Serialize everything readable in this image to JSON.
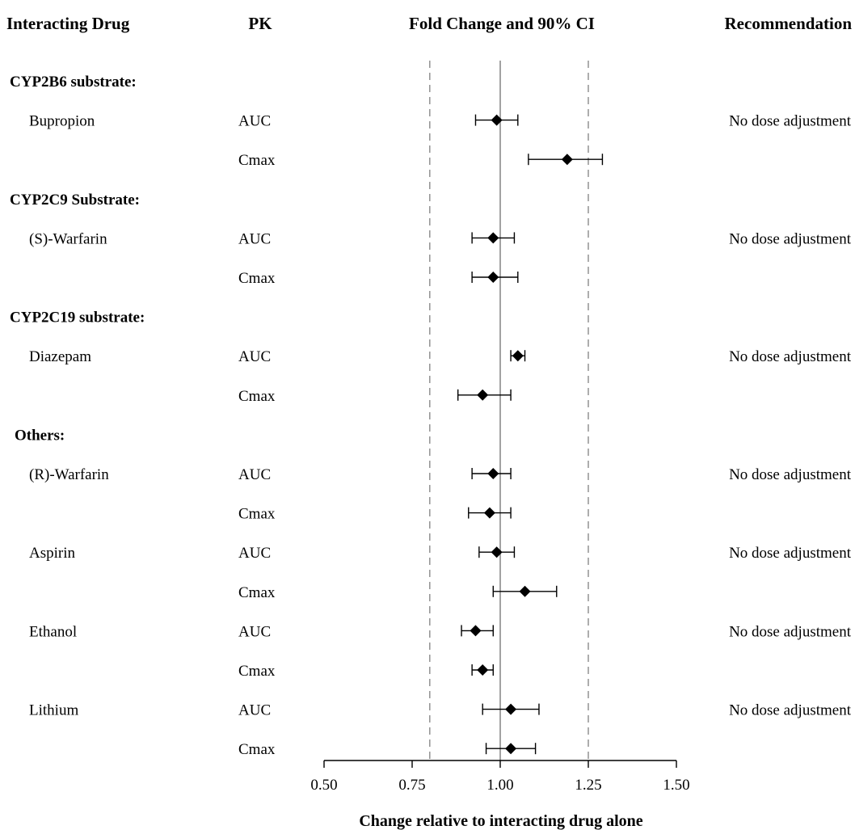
{
  "headers": {
    "drug": "Interacting Drug",
    "pk": "PK",
    "fold": "Fold Change and 90% CI",
    "recommendation": "Recommendation"
  },
  "chart_data": {
    "type": "forest",
    "title": "Fold Change and 90% CI",
    "xlabel": "Change relative to interacting drug alone",
    "xlim": [
      0.5,
      1.5
    ],
    "xticks": [
      "0.50",
      "0.75",
      "1.00",
      "1.25",
      "1.50"
    ],
    "tick_values": [
      0.5,
      0.75,
      1.0,
      1.25,
      1.5
    ],
    "reference_lines": {
      "solid": 1.0,
      "dashed": [
        0.8,
        1.25
      ]
    },
    "rows": [
      {
        "kind": "group",
        "label": "CYP2B6 substrate:"
      },
      {
        "kind": "data",
        "drug": "Bupropion",
        "pk": "AUC",
        "est": 0.99,
        "lo": 0.93,
        "hi": 1.05,
        "rec": "No dose adjustment"
      },
      {
        "kind": "data",
        "drug": "",
        "pk": "Cmax",
        "est": 1.19,
        "lo": 1.08,
        "hi": 1.29,
        "rec": ""
      },
      {
        "kind": "group",
        "label": "CYP2C9 Substrate:"
      },
      {
        "kind": "data",
        "drug": "(S)-Warfarin",
        "pk": "AUC",
        "est": 0.98,
        "lo": 0.92,
        "hi": 1.04,
        "rec": "No dose adjustment"
      },
      {
        "kind": "data",
        "drug": "",
        "pk": "Cmax",
        "est": 0.98,
        "lo": 0.92,
        "hi": 1.05,
        "rec": ""
      },
      {
        "kind": "group",
        "label": "CYP2C19 substrate:"
      },
      {
        "kind": "data",
        "drug": "Diazepam",
        "pk": "AUC",
        "est": 1.05,
        "lo": 1.03,
        "hi": 1.07,
        "rec": "No dose adjustment"
      },
      {
        "kind": "data",
        "drug": "",
        "pk": "Cmax",
        "est": 0.95,
        "lo": 0.88,
        "hi": 1.03,
        "rec": ""
      },
      {
        "kind": "group",
        "label": "Others:"
      },
      {
        "kind": "data",
        "drug": "(R)-Warfarin",
        "pk": "AUC",
        "est": 0.98,
        "lo": 0.92,
        "hi": 1.03,
        "rec": "No dose adjustment"
      },
      {
        "kind": "data",
        "drug": "",
        "pk": "Cmax",
        "est": 0.97,
        "lo": 0.91,
        "hi": 1.03,
        "rec": ""
      },
      {
        "kind": "data",
        "drug": "Aspirin",
        "pk": "AUC",
        "est": 0.99,
        "lo": 0.94,
        "hi": 1.04,
        "rec": "No dose adjustment"
      },
      {
        "kind": "data",
        "drug": "",
        "pk": "Cmax",
        "est": 1.07,
        "lo": 0.98,
        "hi": 1.16,
        "rec": ""
      },
      {
        "kind": "data",
        "drug": "Ethanol",
        "pk": "AUC",
        "est": 0.93,
        "lo": 0.89,
        "hi": 0.98,
        "rec": "No dose adjustment"
      },
      {
        "kind": "data",
        "drug": "",
        "pk": "Cmax",
        "est": 0.95,
        "lo": 0.92,
        "hi": 0.98,
        "rec": ""
      },
      {
        "kind": "data",
        "drug": "Lithium",
        "pk": "AUC",
        "est": 1.03,
        "lo": 0.95,
        "hi": 1.11,
        "rec": "No dose adjustment"
      },
      {
        "kind": "data",
        "drug": "",
        "pk": "Cmax",
        "est": 1.03,
        "lo": 0.96,
        "hi": 1.1,
        "rec": ""
      }
    ]
  }
}
